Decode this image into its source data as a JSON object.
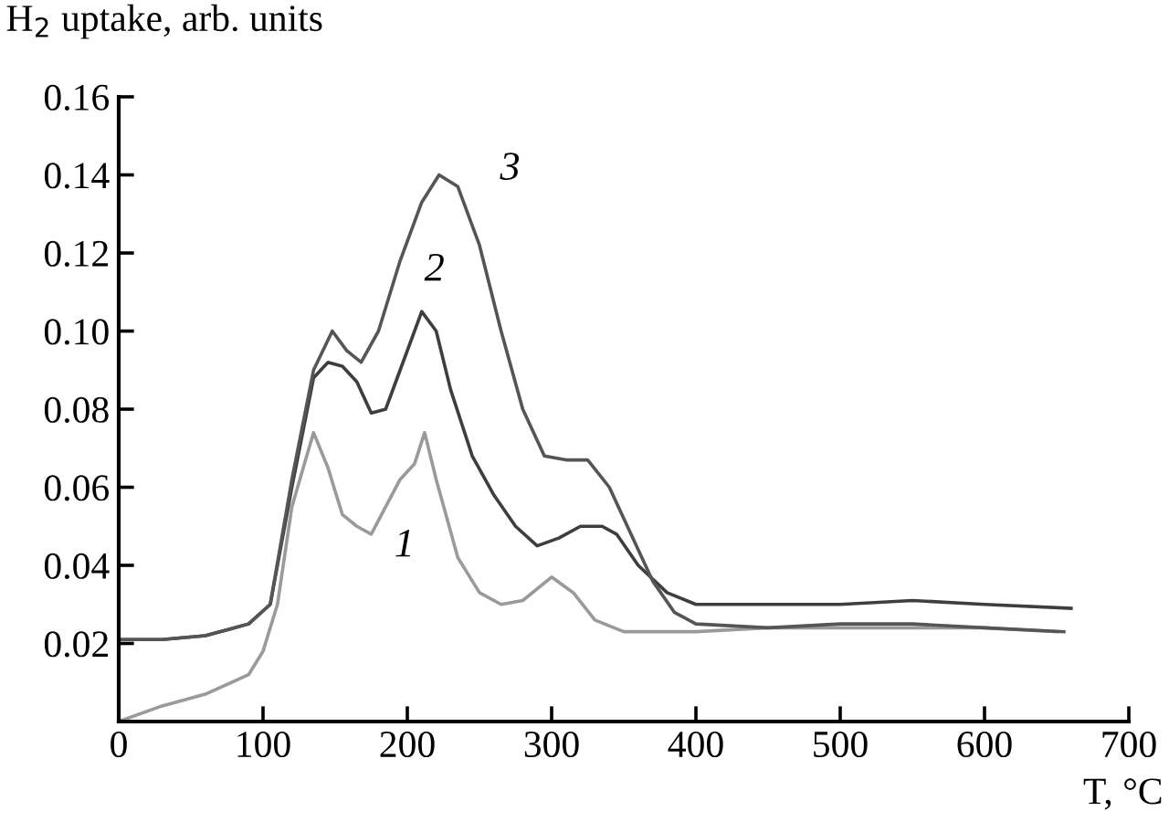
{
  "chart_data": {
    "type": "line",
    "ylabel": "H$_{2}$ uptake, arb. units",
    "xlabel": "T, °C",
    "xlim": [
      0,
      700
    ],
    "xticks": [
      0,
      100,
      200,
      300,
      400,
      500,
      600,
      700
    ],
    "ylim": [
      0,
      0.16
    ],
    "yticks": [
      0.02,
      0.04,
      0.06,
      0.08,
      {
        "value": 0.1,
        "label": "0.10"
      },
      0.12,
      0.14,
      0.16
    ],
    "series": [
      {
        "color": "#9a9a9a",
        "x": [
          0,
          30,
          60,
          90,
          100,
          110,
          120,
          135,
          145,
          155,
          165,
          175,
          185,
          195,
          205,
          212,
          220,
          235,
          250,
          265,
          280,
          300,
          315,
          330,
          350,
          400,
          450,
          500,
          550,
          600,
          650
        ],
        "values": [
          0.0,
          0.004,
          0.007,
          0.012,
          0.018,
          0.03,
          0.055,
          0.074,
          0.065,
          0.053,
          0.05,
          0.048,
          0.055,
          0.062,
          0.066,
          0.074,
          0.062,
          0.042,
          0.033,
          0.03,
          0.031,
          0.037,
          0.033,
          0.026,
          0.023,
          0.023,
          0.024,
          0.024,
          0.024,
          0.024,
          0.023
        ]
      },
      {
        "color": "#3e3e3e",
        "x": [
          0,
          30,
          60,
          90,
          105,
          120,
          135,
          145,
          155,
          165,
          175,
          185,
          195,
          210,
          220,
          230,
          245,
          260,
          275,
          290,
          305,
          320,
          335,
          345,
          360,
          380,
          400,
          450,
          500,
          550,
          600,
          660
        ],
        "values": [
          0.021,
          0.021,
          0.022,
          0.025,
          0.03,
          0.06,
          0.088,
          0.092,
          0.091,
          0.087,
          0.079,
          0.08,
          0.09,
          0.105,
          0.1,
          0.085,
          0.068,
          0.058,
          0.05,
          0.045,
          0.047,
          0.05,
          0.05,
          0.048,
          0.04,
          0.033,
          0.03,
          0.03,
          0.03,
          0.031,
          0.03,
          0.029
        ]
      },
      {
        "color": "#555555",
        "x": [
          0,
          30,
          60,
          90,
          105,
          120,
          135,
          148,
          158,
          168,
          180,
          195,
          210,
          222,
          235,
          250,
          265,
          280,
          295,
          310,
          325,
          340,
          355,
          370,
          385,
          400,
          450,
          500,
          550,
          600,
          655
        ],
        "values": [
          0.021,
          0.021,
          0.022,
          0.025,
          0.03,
          0.062,
          0.09,
          0.1,
          0.095,
          0.092,
          0.1,
          0.118,
          0.133,
          0.14,
          0.137,
          0.122,
          0.1,
          0.08,
          0.068,
          0.067,
          0.067,
          0.06,
          0.048,
          0.036,
          0.028,
          0.025,
          0.024,
          0.025,
          0.025,
          0.024,
          0.023
        ]
      }
    ],
    "annotations": [
      "1",
      "2",
      "3"
    ],
    "grid": false,
    "marker": "none",
    "line_style": "solid"
  }
}
